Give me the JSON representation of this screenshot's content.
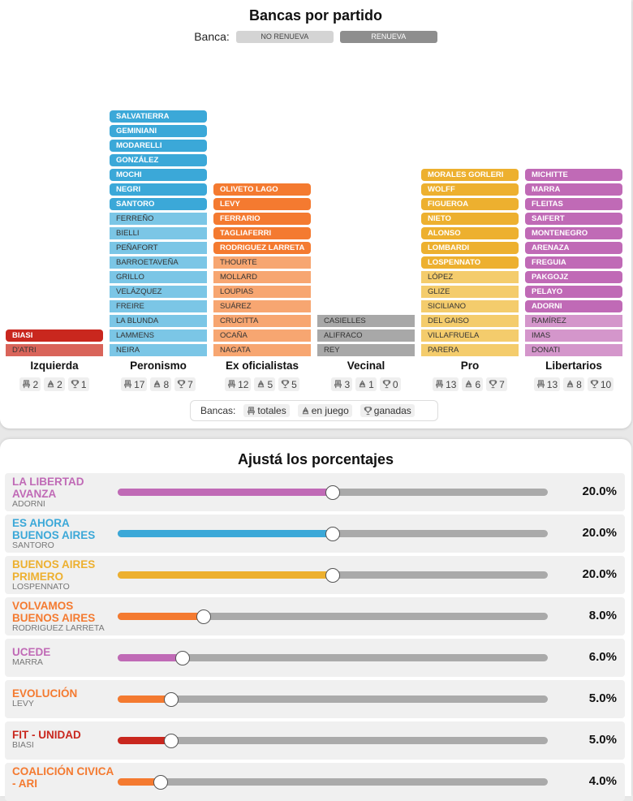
{
  "header": {
    "title": "Bancas por partido",
    "legend_label": "Banca:",
    "legend_no": "NO RENUEVA",
    "legend_si": "RENUEVA"
  },
  "parties": [
    {
      "name": "Izquierda",
      "color": "#c9271e",
      "light": "#d9645a",
      "renueva": [
        "BIASI"
      ],
      "no_renueva": [
        "D'ATRI"
      ],
      "totales": "2",
      "en_juego": "2",
      "ganadas": "1"
    },
    {
      "name": "Peronismo",
      "color": "#3ba8d8",
      "light": "#7bc6e6",
      "renueva": [
        "SALVATIERRA",
        "GEMINIANI",
        "MODARELLI",
        "GONZÁLEZ",
        "MOCHI",
        "NEGRI",
        "SANTORO"
      ],
      "no_renueva": [
        "FERREÑO",
        "BIELLI",
        "PEÑAFORT",
        "BARROETAVEÑA",
        "GRILLO",
        "VELÁZQUEZ",
        "FREIRE",
        "LA BLUNDA",
        "LAMMENS",
        "NEIRA"
      ],
      "totales": "17",
      "en_juego": "8",
      "ganadas": "7"
    },
    {
      "name": "Ex oficialistas",
      "color": "#f47a30",
      "light": "#f7a671",
      "renueva": [
        "OLIVETO LAGO",
        "LEVY",
        "FERRARIO",
        "TAGLIAFERRI",
        "RODRIGUEZ LARRETA"
      ],
      "no_renueva": [
        "THOURTE",
        "MOLLARD",
        "LOUPIAS",
        "SUÁREZ",
        "CRUCITTA",
        "OCAÑA",
        "NAGATA"
      ],
      "totales": "12",
      "en_juego": "5",
      "ganadas": "5"
    },
    {
      "name": "Vecinal",
      "color": "#8e8e8e",
      "light": "#a8a8a8",
      "renueva": [],
      "no_renueva": [
        "CASIELLES",
        "ALIFRACO",
        "REY"
      ],
      "totales": "3",
      "en_juego": "1",
      "ganadas": "0"
    },
    {
      "name": "Pro",
      "color": "#edb02f",
      "light": "#f4cc6c",
      "renueva": [
        "MORALES GORLERI",
        "WOLFF",
        "FIGUEROA",
        "NIETO",
        "ALONSO",
        "LOMBARDI",
        "LOSPENNATO"
      ],
      "no_renueva": [
        "LÓPEZ",
        "GLIZE",
        "SICILIANO",
        "DEL GAISO",
        "VILLAFRUELA",
        "PARERA"
      ],
      "totales": "13",
      "en_juego": "6",
      "ganadas": "7"
    },
    {
      "name": "Libertarios",
      "color": "#c06ab6",
      "light": "#d496cb",
      "renueva": [
        "MICHITTE",
        "MARRA",
        "FLEITAS",
        "SAIFERT",
        "MONTENEGRO",
        "ARENAZA",
        "FREGUIA",
        "PAKGOJZ",
        "PELAYO",
        "ADORNI"
      ],
      "no_renueva": [
        "RAMÍREZ",
        "IMAS",
        "DONATI"
      ],
      "totales": "13",
      "en_juego": "8",
      "ganadas": "10"
    }
  ],
  "legend_bottom": {
    "label": "Bancas:",
    "totales": "totales",
    "en_juego": "en juego",
    "ganadas": "ganadas"
  },
  "sliders": {
    "title": "Ajustá los porcentajes",
    "rows": [
      {
        "name": "LA LIBERTAD AVANZA",
        "sub": "ADORNI",
        "color": "#c06ab6",
        "value": 20.0,
        "label": "20.0%",
        "lines": 2
      },
      {
        "name": "ES AHORA BUENOS AIRES",
        "sub": "SANTORO",
        "color": "#3ba8d8",
        "value": 20.0,
        "label": "20.0%",
        "lines": 2
      },
      {
        "name": "BUENOS AIRES PRIMERO",
        "sub": "LOSPENNATO",
        "color": "#edb02f",
        "value": 20.0,
        "label": "20.0%",
        "lines": 2
      },
      {
        "name": "VOLVAMOS BUENOS AIRES",
        "sub": "RODRIGUEZ LARRETA",
        "color": "#f47a30",
        "value": 8.0,
        "label": "8.0%",
        "lines": 2
      },
      {
        "name": "UCeDe",
        "sub": "MARRA",
        "color": "#c06ab6",
        "value": 6.0,
        "label": "6.0%",
        "lines": 1
      },
      {
        "name": "EVOLUCIÓN",
        "sub": "LEVY",
        "color": "#f47a30",
        "value": 5.0,
        "label": "5.0%",
        "lines": 1
      },
      {
        "name": "FIT - UNIDAD",
        "sub": "BIASI",
        "color": "#c9271e",
        "value": 5.0,
        "label": "5.0%",
        "lines": 1
      },
      {
        "name": "COALICIÓN CIVICA - ARI",
        "sub": "",
        "color": "#f47a30",
        "value": 4.0,
        "label": "4.0%",
        "lines": 2
      }
    ]
  }
}
